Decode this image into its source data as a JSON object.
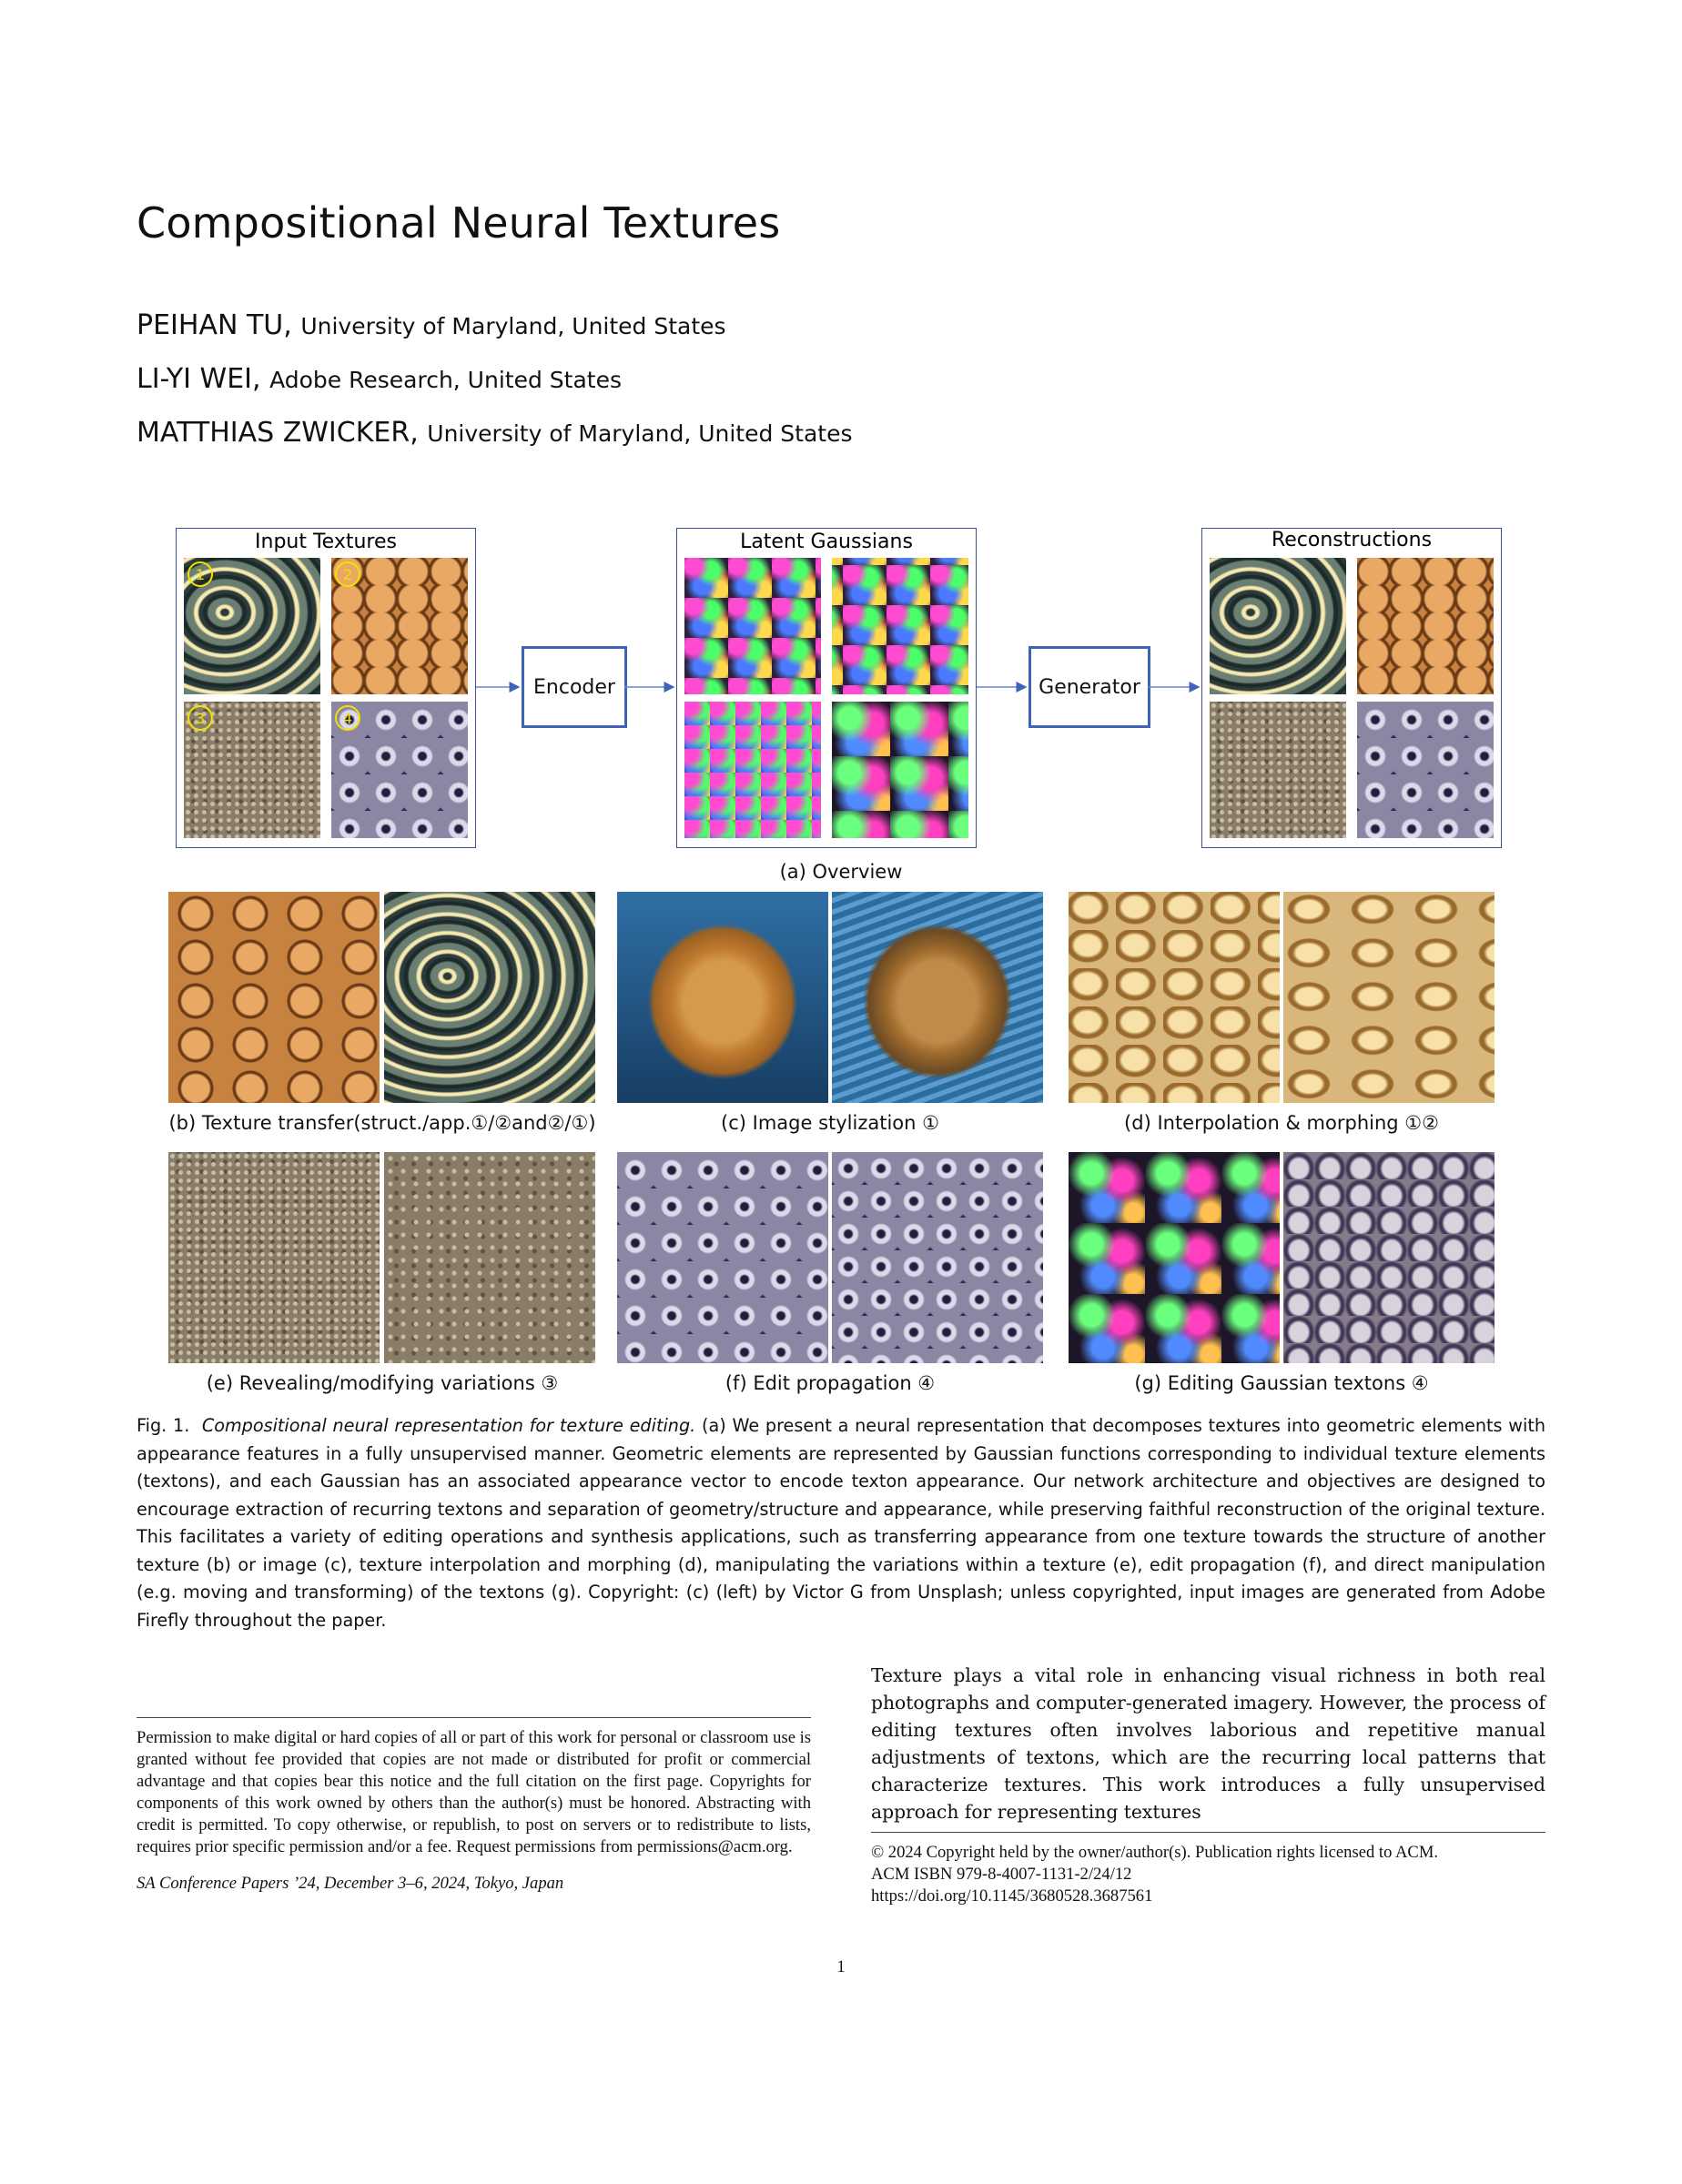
{
  "title": "Compositional Neural Textures",
  "authors": [
    {
      "name": "PEIHAN TU,",
      "affiliation": "University of Maryland, United States"
    },
    {
      "name": "LI-YI WEI,",
      "affiliation": "Adobe Research, United States"
    },
    {
      "name": "MATTHIAS ZWICKER,",
      "affiliation": "University of Maryland, United States"
    }
  ],
  "figure": {
    "overview": {
      "input_title": "Input Textures",
      "latent_title": "Latent Gaussians",
      "recon_title": "Reconstructions",
      "encoder_label": "Encoder",
      "generator_label": "Generator",
      "badges": [
        "1",
        "2",
        "3",
        "4"
      ],
      "caption": "(a) Overview"
    },
    "captions": {
      "b": "(b) Texture transfer(struct./app.①/②and②/①)",
      "c": "(c) Image stylization ①",
      "d": "(d) Interpolation & morphing ①②",
      "e": "(e) Revealing/modifying variations ③",
      "f": "(f) Edit propagation ④",
      "g": "(g) Editing Gaussian textons ④"
    },
    "fig_label": "Fig. 1.",
    "fig_title": "Compositional neural representation for texture editing.",
    "fig_text": "(a) We present a neural representation that decomposes textures into geometric elements with appearance features in a fully unsupervised manner. Geometric elements are represented by Gaussian functions corresponding to individual texture elements (textons), and each Gaussian has an associated appearance vector to encode texton appearance. Our network architecture and objectives are designed to encourage extraction of recurring textons and separation of geometry/structure and appearance, while preserving faithful reconstruction of the original texture. This facilitates a variety of editing operations and synthesis applications, such as transferring appearance from one texture towards the structure of another texture (b) or image (c), texture interpolation and morphing (d), manipulating the variations within a texture (e), edit propagation (f), and direct manipulation (e.g. moving and transforming) of the textons (g). Copyright: (c) (left) by Victor G from Unsplash; unless copyrighted, input images are generated from Adobe Firefly throughout the paper."
  },
  "body_text": "Texture plays a vital role in enhancing visual richness in both real photographs and computer-generated imagery. However, the process of editing textures often involves laborious and repetitive manual adjustments of textons, which are the recurring local patterns that characterize textures. This work introduces a fully unsupervised approach for representing textures",
  "footnote_left": {
    "permission": "Permission to make digital or hard copies of all or part of this work for personal or classroom use is granted without fee provided that copies are not made or distributed for profit or commercial advantage and that copies bear this notice and the full citation on the first page. Copyrights for components of this work owned by others than the author(s) must be honored. Abstracting with credit is permitted. To copy otherwise, or republish, to post on servers or to redistribute to lists, requires prior specific permission and/or a fee. Request permissions from permissions@acm.org.",
    "conference": "SA Conference Papers ’24, December 3–6, 2024, Tokyo, Japan"
  },
  "footnote_right": {
    "copyright": "© 2024 Copyright held by the owner/author(s). Publication rights licensed to ACM.",
    "isbn": "ACM ISBN 979-8-4007-1131-2/24/12",
    "doi": "https://doi.org/10.1145/3680528.3687561"
  },
  "page_number": "1",
  "colors": {
    "panel_border": "#3b4f93",
    "node_border": "#3f63b8",
    "badge": "#f3e100"
  }
}
